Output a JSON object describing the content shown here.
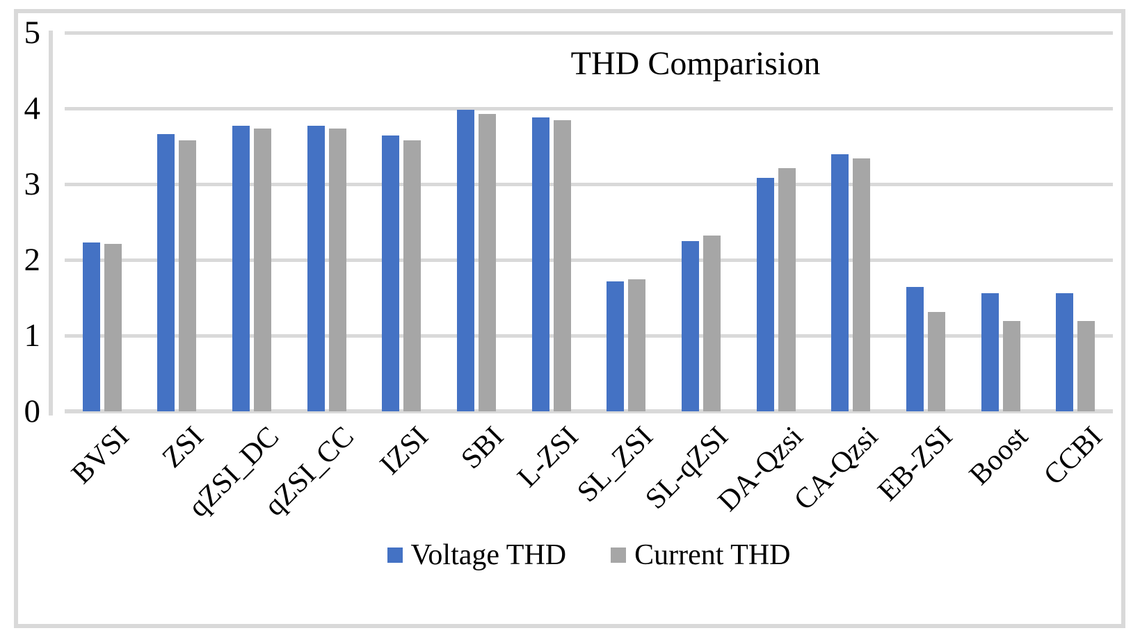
{
  "figure": {
    "background_color": "#FFFFFF",
    "frame_color": "#D9D9D9"
  },
  "chart_data": {
    "type": "bar",
    "title": "THD Comparision",
    "xlabel": "",
    "ylabel": "",
    "categories": [
      "BVSI",
      "ZSI",
      "qZSI_DC",
      "qZSI_CC",
      "IZSI",
      "SBI",
      "L-ZSI",
      "SL_ZSI",
      "SL-qZSI",
      "DA-Qzsi",
      "CA-Qzsi",
      "EB-ZSI",
      "Boost",
      "CCBI"
    ],
    "series": [
      {
        "name": "Voltage THD",
        "color": "#4472C4",
        "values": [
          2.23,
          3.66,
          3.77,
          3.77,
          3.64,
          3.98,
          3.88,
          1.72,
          2.25,
          3.08,
          3.39,
          1.64,
          1.56,
          1.56
        ]
      },
      {
        "name": "Current THD",
        "color": "#A6A6A6",
        "values": [
          2.21,
          3.58,
          3.73,
          3.73,
          3.58,
          3.93,
          3.84,
          1.74,
          2.32,
          3.21,
          3.34,
          1.31,
          1.19,
          1.19
        ]
      }
    ],
    "ylim": [
      0,
      5
    ],
    "yticks": [
      0,
      1,
      2,
      3,
      4,
      5
    ],
    "grid": true,
    "gridline_color": "#D9D9D9",
    "legend_position": "bottom",
    "x_tick_rotation_deg": 45
  }
}
